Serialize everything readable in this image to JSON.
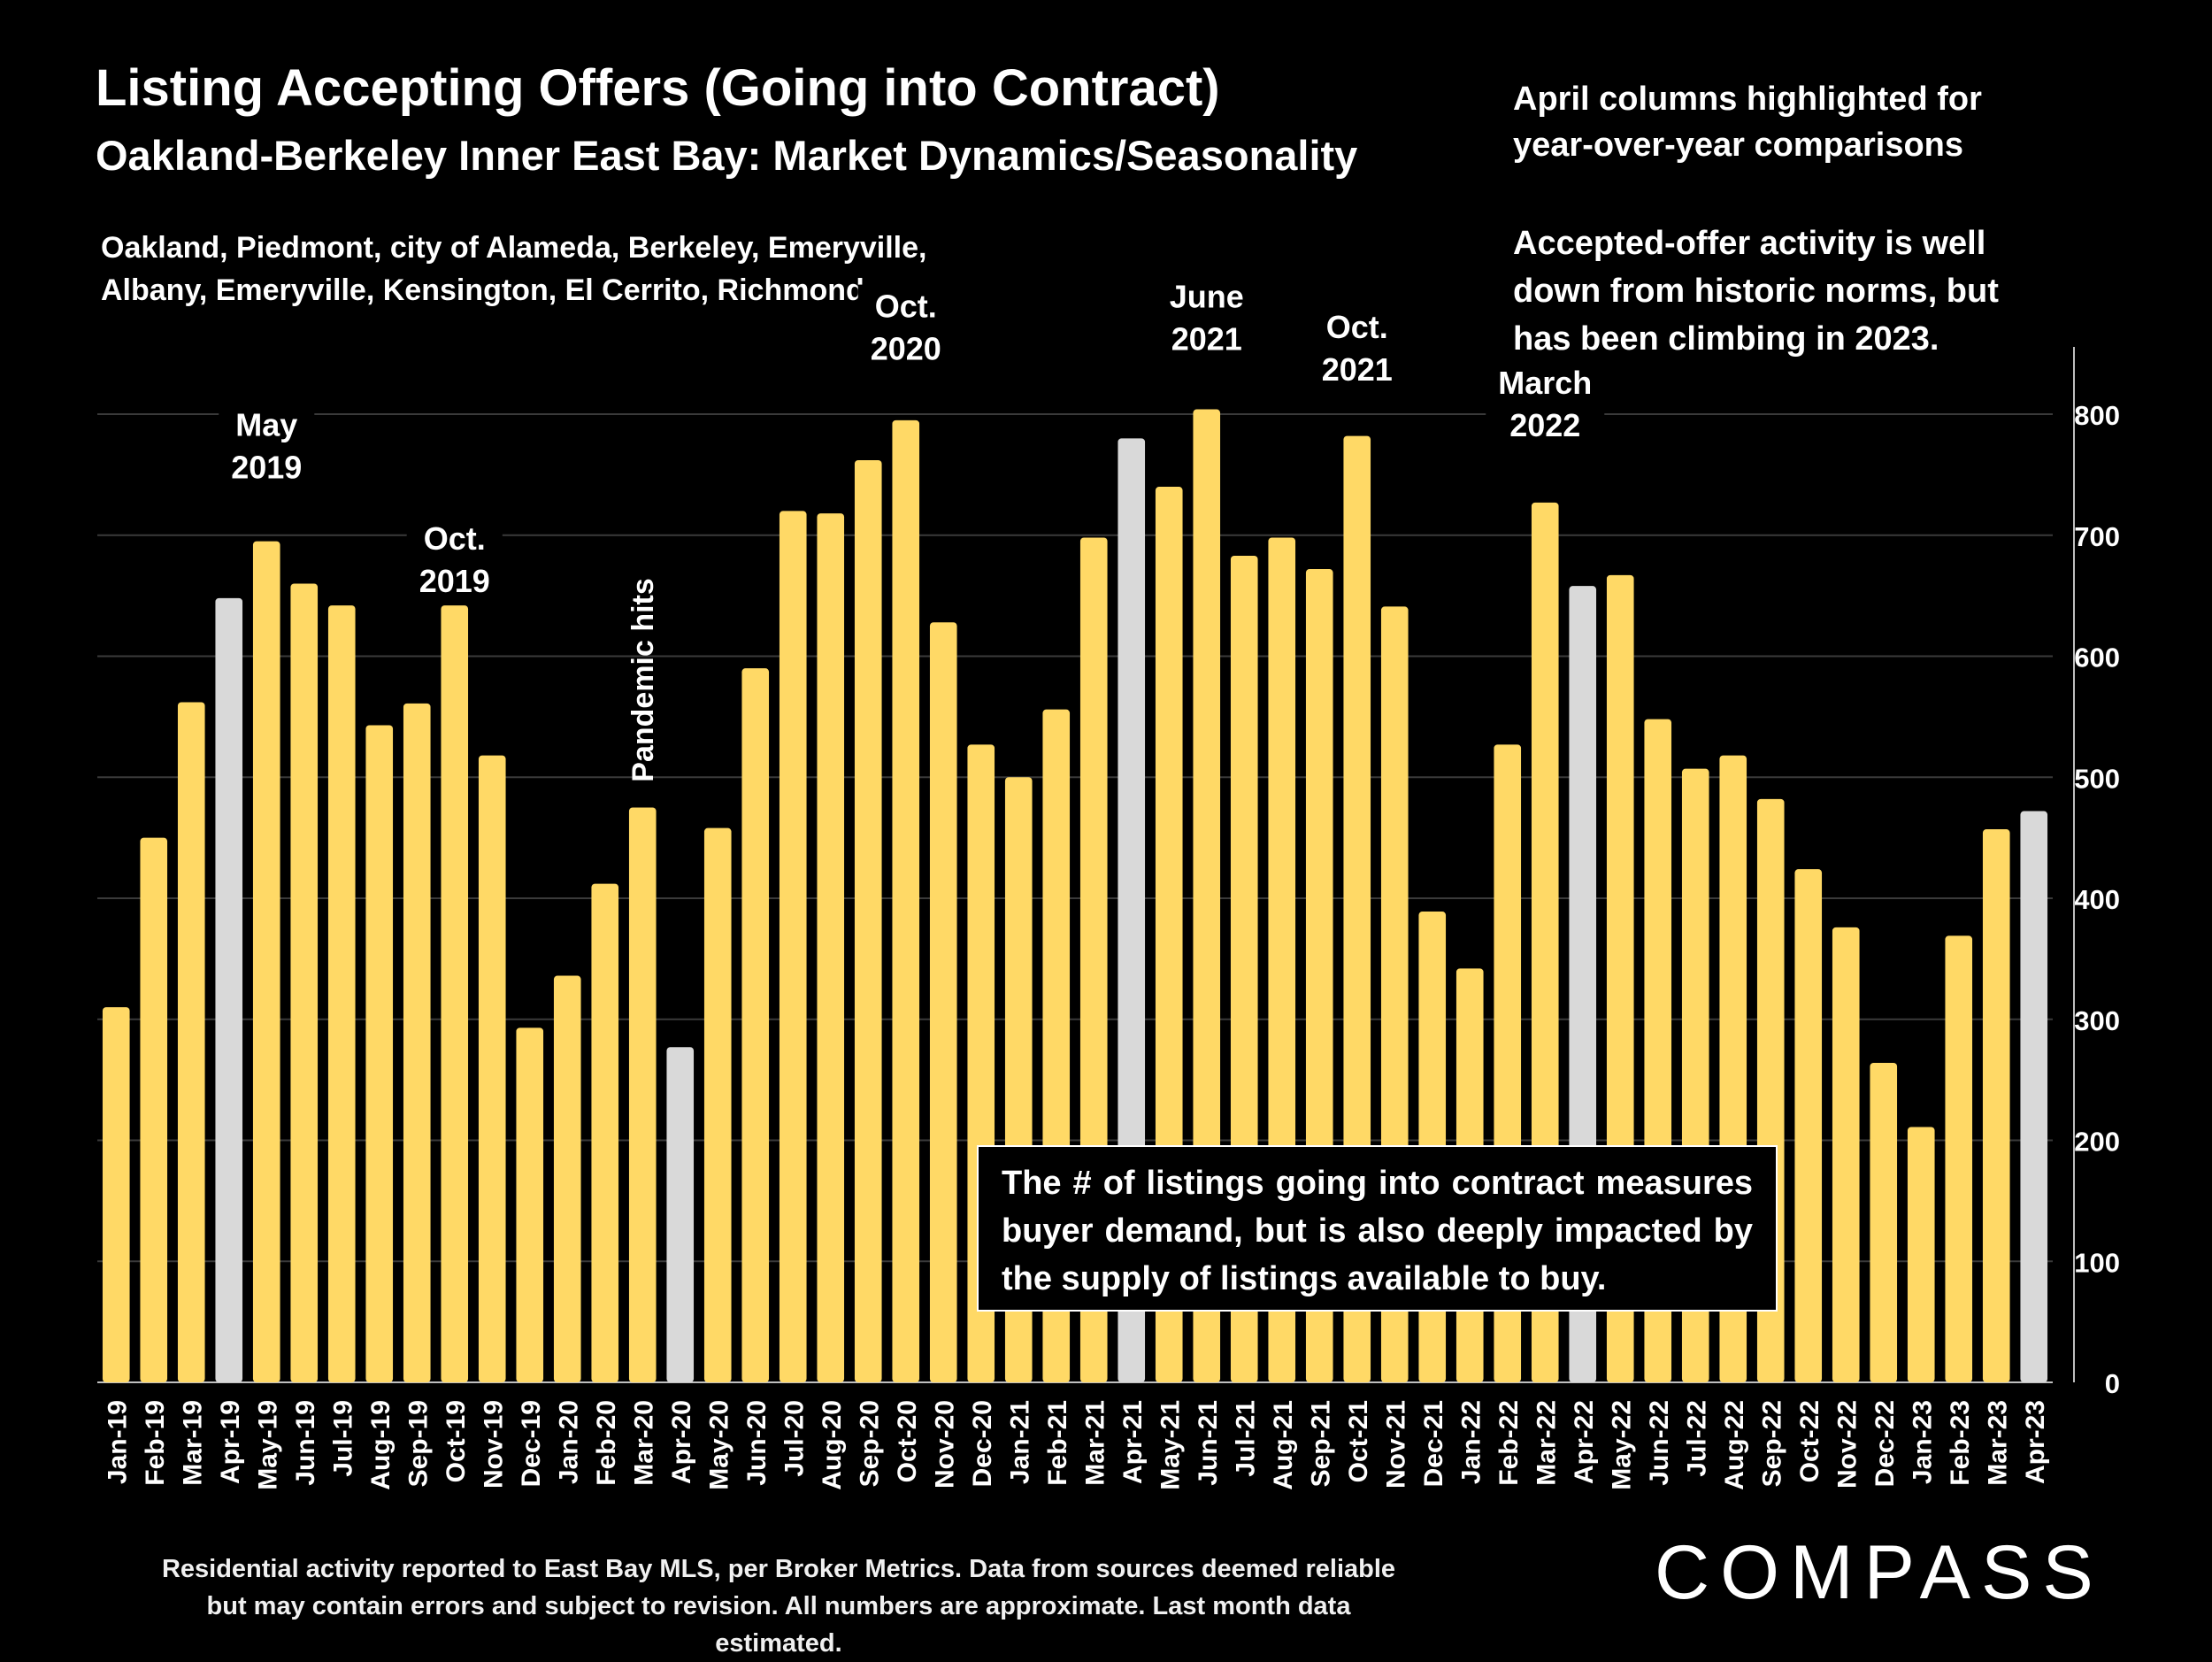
{
  "header": {
    "title": "Listing Accepting Offers (Going into Contract)",
    "subtitle": "Oakland-Berkeley Inner East Bay: Market Dynamics/Seasonality",
    "cities": "Oakland, Piedmont, city of Alameda, Berkeley, Emeryville,\nAlbany, Emeryville, Kensington, El Cerrito, Richmond"
  },
  "notes": {
    "april_note": "April columns highlighted for\nyear-over-year comparisons",
    "trend_note": "Accepted-offer activity is well\ndown from historic norms, but\nhas been climbing in 2023."
  },
  "callout": "The # of listings going into contract measures buyer demand, but is also deeply impacted by the supply of listings available to buy.",
  "footer": "Residential activity reported to East Bay MLS, per Broker Metrics. Data from sources deemed reliable but may contain errors and subject to revision. All numbers are approximate. Last month data estimated.",
  "logo": "COMPASS",
  "colors": {
    "background": "#000000",
    "bar": "#ffd966",
    "bar_highlight": "#d9d9d9",
    "grid": "#3a3a3a",
    "text": "#ffffff"
  },
  "chart_data": {
    "type": "bar",
    "title": "Listing Accepting Offers (Going into Contract)",
    "y_axis_position": "right",
    "ylim": [
      0,
      800
    ],
    "yticks": [
      0,
      100,
      200,
      300,
      400,
      500,
      600,
      700,
      800
    ],
    "grid": true,
    "categories": [
      "Jan-19",
      "Feb-19",
      "Mar-19",
      "Apr-19",
      "May-19",
      "Jun-19",
      "Jul-19",
      "Aug-19",
      "Sep-19",
      "Oct-19",
      "Nov-19",
      "Dec-19",
      "Jan-20",
      "Feb-20",
      "Mar-20",
      "Apr-20",
      "May-20",
      "Jun-20",
      "Jul-20",
      "Aug-20",
      "Sep-20",
      "Oct-20",
      "Nov-20",
      "Dec-20",
      "Jan-21",
      "Feb-21",
      "Mar-21",
      "Apr-21",
      "May-21",
      "Jun-21",
      "Jul-21",
      "Aug-21",
      "Sep-21",
      "Oct-21",
      "Nov-21",
      "Dec-21",
      "Jan-22",
      "Feb-22",
      "Mar-22",
      "Apr-22",
      "May-22",
      "Jun-22",
      "Jul-22",
      "Aug-22",
      "Sep-22",
      "Oct-22",
      "Nov-22",
      "Dec-22",
      "Jan-23",
      "Feb-23",
      "Mar-23",
      "Apr-23"
    ],
    "values": [
      310,
      450,
      562,
      648,
      695,
      660,
      642,
      543,
      561,
      642,
      518,
      293,
      336,
      412,
      475,
      277,
      458,
      590,
      720,
      718,
      762,
      795,
      628,
      527,
      500,
      556,
      698,
      780,
      740,
      804,
      683,
      698,
      672,
      782,
      641,
      389,
      342,
      527,
      727,
      658,
      667,
      548,
      507,
      518,
      482,
      424,
      376,
      264,
      211,
      369,
      457,
      472
    ],
    "highlighted": [
      "Apr-19",
      "Apr-20",
      "Apr-21",
      "Apr-22",
      "Apr-23"
    ],
    "annotations": [
      {
        "category": "May-19",
        "text": "May\n2019",
        "value": 782
      },
      {
        "category": "Oct-19",
        "text": "Oct.\n2019",
        "value": 688
      },
      {
        "category": "Mar-20",
        "text": "Pandemic hits",
        "rotated": true,
        "value": 496
      },
      {
        "category": "Oct-20",
        "text": "Oct.\n2020",
        "value": 880
      },
      {
        "category": "Jun-21",
        "text": "June\n2021",
        "value": 888
      },
      {
        "category": "Oct-21",
        "text": "Oct.\n2021",
        "value": 863
      },
      {
        "category": "Mar-22",
        "text": "March\n2022",
        "value": 817
      }
    ]
  }
}
